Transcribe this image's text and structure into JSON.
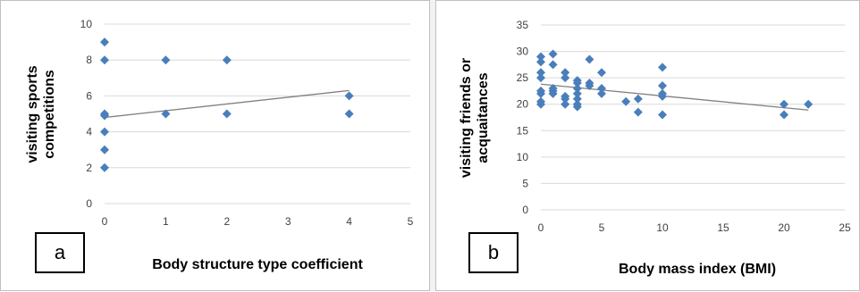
{
  "chart_data": [
    {
      "type": "scatter",
      "panel_label": "a",
      "xlabel": "Body structure type coefficient",
      "ylabel_lines": [
        "visiting sports",
        "competitions"
      ],
      "xlim": [
        0,
        5
      ],
      "ylim": [
        0,
        10
      ],
      "xticks": [
        0,
        1,
        2,
        3,
        4,
        5
      ],
      "yticks": [
        0,
        2,
        4,
        6,
        8,
        10
      ],
      "grid": "horizontal",
      "marker_color": "#4a7ebb",
      "points": [
        {
          "x": 0,
          "y": 9
        },
        {
          "x": 0,
          "y": 8
        },
        {
          "x": 0,
          "y": 5
        },
        {
          "x": 0,
          "y": 4.9
        },
        {
          "x": 0,
          "y": 4
        },
        {
          "x": 0,
          "y": 3
        },
        {
          "x": 0,
          "y": 2
        },
        {
          "x": 1,
          "y": 8
        },
        {
          "x": 1,
          "y": 5
        },
        {
          "x": 2,
          "y": 8
        },
        {
          "x": 2,
          "y": 5
        },
        {
          "x": 4,
          "y": 6
        },
        {
          "x": 4,
          "y": 5
        }
      ],
      "trendline": {
        "x": [
          0,
          4
        ],
        "y": [
          4.8,
          6.3
        ],
        "color": "#808080"
      }
    },
    {
      "type": "scatter",
      "panel_label": "b",
      "xlabel": "Body mass index (BMI)",
      "ylabel_lines": [
        "visiting friends or",
        "acquaitances"
      ],
      "xlim": [
        0,
        25
      ],
      "ylim": [
        0,
        35
      ],
      "xticks": [
        0,
        5,
        10,
        15,
        20,
        25
      ],
      "yticks": [
        0,
        5,
        10,
        15,
        20,
        25,
        30,
        35
      ],
      "grid": "horizontal",
      "marker_color": "#4a7ebb",
      "points": [
        {
          "x": 0,
          "y": 29
        },
        {
          "x": 0,
          "y": 28
        },
        {
          "x": 0,
          "y": 26
        },
        {
          "x": 0,
          "y": 25
        },
        {
          "x": 0,
          "y": 22.5
        },
        {
          "x": 0,
          "y": 22
        },
        {
          "x": 0,
          "y": 20.5
        },
        {
          "x": 0,
          "y": 20
        },
        {
          "x": 1,
          "y": 29.5
        },
        {
          "x": 1,
          "y": 27.5
        },
        {
          "x": 1,
          "y": 23
        },
        {
          "x": 1,
          "y": 22.5
        },
        {
          "x": 1,
          "y": 22
        },
        {
          "x": 2,
          "y": 26
        },
        {
          "x": 2,
          "y": 25
        },
        {
          "x": 2,
          "y": 21.5
        },
        {
          "x": 2,
          "y": 21
        },
        {
          "x": 2,
          "y": 20
        },
        {
          "x": 3,
          "y": 24.5
        },
        {
          "x": 3,
          "y": 24
        },
        {
          "x": 3,
          "y": 23
        },
        {
          "x": 3,
          "y": 22
        },
        {
          "x": 3,
          "y": 21
        },
        {
          "x": 3,
          "y": 20
        },
        {
          "x": 3,
          "y": 19.5
        },
        {
          "x": 4,
          "y": 28.5
        },
        {
          "x": 4,
          "y": 24
        },
        {
          "x": 4,
          "y": 23.5
        },
        {
          "x": 5,
          "y": 26
        },
        {
          "x": 5,
          "y": 23
        },
        {
          "x": 5,
          "y": 22
        },
        {
          "x": 7,
          "y": 20.5
        },
        {
          "x": 8,
          "y": 21
        },
        {
          "x": 8,
          "y": 18.5
        },
        {
          "x": 10,
          "y": 27
        },
        {
          "x": 10,
          "y": 23.5
        },
        {
          "x": 10,
          "y": 22
        },
        {
          "x": 10,
          "y": 21.5
        },
        {
          "x": 10,
          "y": 18
        },
        {
          "x": 20,
          "y": 20
        },
        {
          "x": 20,
          "y": 18
        },
        {
          "x": 22,
          "y": 20
        }
      ],
      "trendline": {
        "x": [
          0,
          22
        ],
        "y": [
          23.8,
          18.9
        ],
        "color": "#808080"
      }
    }
  ]
}
